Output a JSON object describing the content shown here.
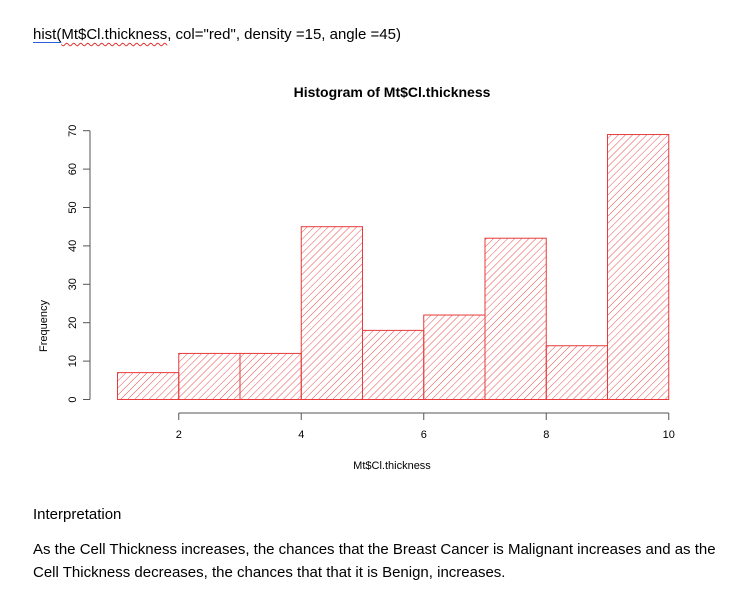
{
  "code": {
    "prefix": "hist(",
    "arg": "Mt$Cl.thickness",
    "rest": ", col=\"red\", density =15, angle =45)"
  },
  "chart_data": {
    "type": "bar",
    "title": "Histogram of Mt$Cl.thickness",
    "xlabel": "Mt$Cl.thickness",
    "ylabel": "Frequency",
    "bins": [
      [
        1,
        2
      ],
      [
        2,
        3
      ],
      [
        3,
        4
      ],
      [
        4,
        5
      ],
      [
        5,
        6
      ],
      [
        6,
        7
      ],
      [
        7,
        8
      ],
      [
        8,
        9
      ],
      [
        9,
        10
      ]
    ],
    "values": [
      7,
      12,
      12,
      45,
      18,
      22,
      42,
      14,
      69
    ],
    "xticks": [
      2,
      4,
      6,
      8,
      10
    ],
    "yticks": [
      0,
      10,
      20,
      30,
      40,
      50,
      60,
      70
    ],
    "xlim": [
      1,
      10
    ],
    "ylim": [
      0,
      70
    ],
    "bar_color": "#e83a3a",
    "fill": "hatched, density 15, angle 45",
    "grid": false,
    "legend": "none"
  },
  "interpretation": {
    "heading": "Interpretation",
    "text": "As the Cell Thickness increases, the chances that the Breast Cancer is Malignant increases and as the Cell Thickness decreases, the chances that that it is Benign, increases."
  }
}
